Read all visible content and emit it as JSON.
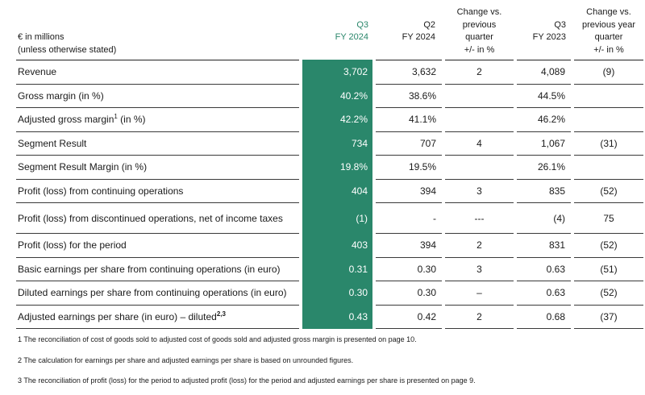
{
  "header": {
    "unit_line1": "€ in millions",
    "unit_line2": "(unless otherwise stated)",
    "columns": [
      {
        "lines": [
          "Q3",
          "FY 2024"
        ]
      },
      {
        "lines": [
          "Q2",
          "FY 2024"
        ]
      },
      {
        "lines": [
          "Change vs.",
          "previous",
          "quarter",
          "+/- in %"
        ]
      },
      {
        "lines": [
          "Q3",
          "FY 2023"
        ]
      },
      {
        "lines": [
          "Change vs.",
          "previous year",
          "quarter",
          "+/- in %"
        ]
      }
    ]
  },
  "rows": [
    {
      "label": "Revenue",
      "values": [
        "3,702",
        "3,632",
        "2",
        "4,089",
        "(9)"
      ]
    },
    {
      "label": "Gross margin (in %)",
      "values": [
        "40.2%",
        "38.6%",
        "",
        "44.5%",
        ""
      ]
    },
    {
      "label": "Adjusted gross margin",
      "sup": "1",
      "label_suffix": " (in %)",
      "values": [
        "42.2%",
        "41.1%",
        "",
        "46.2%",
        ""
      ]
    },
    {
      "label": "Segment Result",
      "values": [
        "734",
        "707",
        "4",
        "1,067",
        "(31)"
      ]
    },
    {
      "label": "Segment Result Margin (in %)",
      "values": [
        "19.8%",
        "19.5%",
        "",
        "26.1%",
        ""
      ]
    },
    {
      "label": "Profit (loss) from continuing operations",
      "values": [
        "404",
        "394",
        "3",
        "835",
        "(52)"
      ]
    },
    {
      "label": "Profit (loss) from discontinued operations, net of income taxes",
      "values": [
        "(1)",
        "-",
        "---",
        "(4)",
        "75"
      ]
    },
    {
      "label": "Profit (loss) for the period",
      "values": [
        "403",
        "394",
        "2",
        "831",
        "(52)"
      ]
    },
    {
      "label": "Basic earnings per share from continuing operations (in euro)",
      "values": [
        "0.31",
        "0.30",
        "3",
        "0.63",
        "(51)"
      ]
    },
    {
      "label": "Diluted earnings per share from continuing operations (in euro)",
      "values": [
        "0.30",
        "0.30",
        "–",
        "0.63",
        "(52)"
      ]
    },
    {
      "label": "Adjusted earnings per share (in euro) – diluted",
      "sup": "2,3",
      "values": [
        "0.43",
        "0.42",
        "2",
        "0.68",
        "(37)"
      ]
    }
  ],
  "footnotes": [
    "1 The reconciliation of cost of goods sold to adjusted cost of goods sold and adjusted gross margin is presented on page 10.",
    "2 The calculation for earnings per share and adjusted earnings per share is based on unrounded figures.",
    "3 The reconciliation of profit (loss) for the period to adjusted profit (loss) for the period and adjusted earnings per share is presented on page 9."
  ],
  "colors": {
    "highlight": "#2a876b",
    "text": "#1a1a1a",
    "rule": "#3a3a3a"
  }
}
